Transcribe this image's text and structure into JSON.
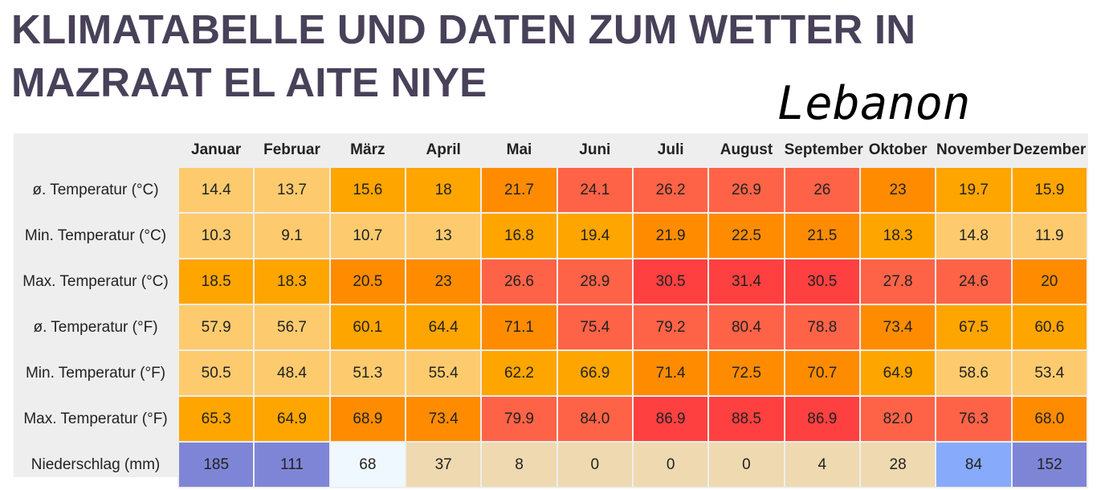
{
  "page": {
    "title": "KLIMATABELLE UND DATEN ZUM WETTER IN MAZRAAT EL AITE NIYE",
    "country_overlay": "Lebanon"
  },
  "table": {
    "columns": [
      "Januar",
      "Februar",
      "März",
      "April",
      "Mai",
      "Juni",
      "Juli",
      "August",
      "September",
      "Oktober",
      "November",
      "Dezember"
    ],
    "rows": [
      {
        "label": "ø. Temperatur (°C)",
        "values": [
          "14.4",
          "13.7",
          "15.6",
          "18",
          "21.7",
          "24.1",
          "26.2",
          "26.9",
          "26",
          "23",
          "19.7",
          "15.9"
        ]
      },
      {
        "label": "Min. Temperatur (°C)",
        "values": [
          "10.3",
          "9.1",
          "10.7",
          "13",
          "16.8",
          "19.4",
          "21.9",
          "22.5",
          "21.5",
          "18.3",
          "14.8",
          "11.9"
        ]
      },
      {
        "label": "Max. Temperatur (°C)",
        "values": [
          "18.5",
          "18.3",
          "20.5",
          "23",
          "26.6",
          "28.9",
          "30.5",
          "31.4",
          "30.5",
          "27.8",
          "24.6",
          "20"
        ]
      },
      {
        "label": "ø. Temperatur (°F)",
        "values": [
          "57.9",
          "56.7",
          "60.1",
          "64.4",
          "71.1",
          "75.4",
          "79.2",
          "80.4",
          "78.8",
          "73.4",
          "67.5",
          "60.6"
        ]
      },
      {
        "label": "Min. Temperatur (°F)",
        "values": [
          "50.5",
          "48.4",
          "51.3",
          "55.4",
          "62.2",
          "66.9",
          "71.4",
          "72.5",
          "70.7",
          "64.9",
          "58.6",
          "53.4"
        ]
      },
      {
        "label": "Max. Temperatur (°F)",
        "values": [
          "65.3",
          "64.9",
          "68.9",
          "73.4",
          "79.9",
          "84.0",
          "86.9",
          "88.5",
          "86.9",
          "82.0",
          "76.3",
          "68.0"
        ]
      },
      {
        "label": "Niederschlag (mm)",
        "values": [
          "185",
          "111",
          "68",
          "37",
          "8",
          "0",
          "0",
          "0",
          "4",
          "28",
          "84",
          "152"
        ]
      }
    ],
    "cell_colors": [
      [
        "#fdcb6e",
        "#fdcb6e",
        "#ffa500",
        "#ffa500",
        "#ff8c00",
        "#ff6347",
        "#ff6347",
        "#ff6347",
        "#ff6347",
        "#ff8c00",
        "#ffa500",
        "#ffa500"
      ],
      [
        "#fdcb6e",
        "#fdcb6e",
        "#fdcb6e",
        "#fdcb6e",
        "#ffa500",
        "#ffa500",
        "#ff8c00",
        "#ff8c00",
        "#ff8c00",
        "#ffa500",
        "#fdcb6e",
        "#fdcb6e"
      ],
      [
        "#ffa500",
        "#ffa500",
        "#ff8c00",
        "#ff8c00",
        "#ff6347",
        "#ff6347",
        "#ff4040",
        "#ff4040",
        "#ff4040",
        "#ff6347",
        "#ff6347",
        "#ff8c00"
      ],
      [
        "#fdcb6e",
        "#fdcb6e",
        "#ffa500",
        "#ffa500",
        "#ff8c00",
        "#ff6347",
        "#ff6347",
        "#ff6347",
        "#ff6347",
        "#ff8c00",
        "#ffa500",
        "#ffa500"
      ],
      [
        "#fdcb6e",
        "#fdcb6e",
        "#fdcb6e",
        "#fdcb6e",
        "#ffa500",
        "#ffa500",
        "#ff8c00",
        "#ff8c00",
        "#ff8c00",
        "#ffa500",
        "#fdcb6e",
        "#fdcb6e"
      ],
      [
        "#ffa500",
        "#ffa500",
        "#ff8c00",
        "#ff8c00",
        "#ff6347",
        "#ff6347",
        "#ff4040",
        "#ff4040",
        "#ff4040",
        "#ff6347",
        "#ff6347",
        "#ff8c00"
      ],
      [
        "#7f85d6",
        "#7f85d6",
        "#f0f8ff",
        "#eed9b0",
        "#eed9b0",
        "#eed9b0",
        "#eed9b0",
        "#eed9b0",
        "#eed9b0",
        "#eed9b0",
        "#87aafb",
        "#7f85d6"
      ]
    ]
  }
}
